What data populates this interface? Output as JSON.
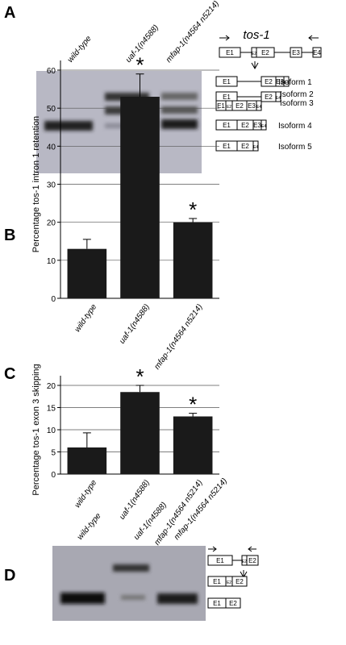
{
  "panels": {
    "a": "A",
    "b": "B",
    "c": "C",
    "d": "D"
  },
  "lanes": [
    "wild-type",
    "uaf-1(n4588)",
    "mfap-1(n4564 n5214)"
  ],
  "gene": {
    "title": "tos-1",
    "exons": [
      "E1",
      "E2",
      "E3",
      "E4"
    ],
    "isoforms": [
      "Isoform 1",
      "Isoform 2",
      "Isoform 3",
      "Isoform 4",
      "Isoform 5"
    ]
  },
  "chart_data": [
    {
      "type": "bar",
      "ylabel": "Percentage tos-1 intron 1 retention",
      "categories": [
        "wild-type",
        "uaf-1(n4588)",
        "mfap-1(n4564 n5214)"
      ],
      "values": [
        13,
        53,
        20
      ],
      "error": [
        2.5,
        6,
        1
      ],
      "annotations": [
        "*",
        "*"
      ],
      "color": "#1a1a1a",
      "ylim": [
        0,
        60
      ],
      "yticks": [
        0,
        10,
        20,
        30,
        40,
        50,
        60
      ],
      "grid": true
    },
    {
      "type": "bar",
      "ylabel": "Percentage tos-1 exon 3 skipping",
      "categories": [
        "wild-type",
        "uaf-1(n4588)",
        "mfap-1(n4564 n5214)"
      ],
      "values": [
        6,
        18.5,
        13
      ],
      "error": [
        3.3,
        1.5,
        0.7
      ],
      "annotations": [
        "*",
        "*"
      ],
      "color": "#1a1a1a",
      "ylim": [
        0,
        20
      ],
      "yticks": [
        0,
        5,
        10,
        15,
        20
      ],
      "grid": true
    }
  ]
}
